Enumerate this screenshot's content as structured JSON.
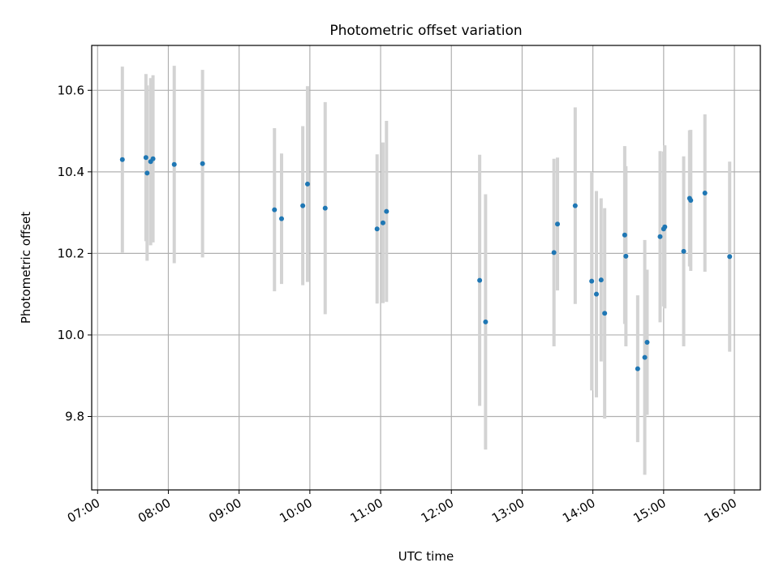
{
  "chart_data": {
    "type": "scatter",
    "title": "Photometric offset variation",
    "xlabel": "UTC time",
    "ylabel": "Photometric offset",
    "x_ticks": [
      "07:00",
      "08:00",
      "09:00",
      "10:00",
      "11:00",
      "12:00",
      "13:00",
      "14:00",
      "15:00",
      "16:00"
    ],
    "y_ticks": [
      "9.8",
      "10.0",
      "10.2",
      "10.4",
      "10.6"
    ],
    "xlim": [
      "06:55",
      "16:22"
    ],
    "ylim": [
      9.62,
      10.71
    ],
    "grid": true,
    "colors": {
      "point": "#1f77b4",
      "errorbar": "#d3d3d3",
      "grid": "#b0b0b0"
    },
    "series": [
      {
        "points": [
          {
            "x": "07:21",
            "y": 10.43,
            "err": 0.228
          },
          {
            "x": "07:41",
            "y": 10.435,
            "err": 0.205
          },
          {
            "x": "07:42",
            "y": 10.397,
            "err": 0.215
          },
          {
            "x": "07:45",
            "y": 10.425,
            "err": 0.205
          },
          {
            "x": "07:47",
            "y": 10.432,
            "err": 0.205
          },
          {
            "x": "08:05",
            "y": 10.418,
            "err": 0.242
          },
          {
            "x": "08:29",
            "y": 10.42,
            "err": 0.23
          },
          {
            "x": "09:30",
            "y": 10.307,
            "err": 0.2
          },
          {
            "x": "09:36",
            "y": 10.285,
            "err": 0.16
          },
          {
            "x": "09:54",
            "y": 10.317,
            "err": 0.195
          },
          {
            "x": "09:58",
            "y": 10.37,
            "err": 0.24
          },
          {
            "x": "10:13",
            "y": 10.311,
            "err": 0.26
          },
          {
            "x": "10:57",
            "y": 10.26,
            "err": 0.183
          },
          {
            "x": "11:02",
            "y": 10.275,
            "err": 0.197
          },
          {
            "x": "11:05",
            "y": 10.303,
            "err": 0.222
          },
          {
            "x": "12:24",
            "y": 10.134,
            "err": 0.308
          },
          {
            "x": "12:29",
            "y": 10.032,
            "err": 0.313
          },
          {
            "x": "13:27",
            "y": 10.202,
            "err": 0.23
          },
          {
            "x": "13:30",
            "y": 10.272,
            "err": 0.163
          },
          {
            "x": "13:45",
            "y": 10.317,
            "err": 0.241
          },
          {
            "x": "13:59",
            "y": 10.132,
            "err": 0.268
          },
          {
            "x": "14:03",
            "y": 10.1,
            "err": 0.253
          },
          {
            "x": "14:07",
            "y": 10.135,
            "err": 0.2
          },
          {
            "x": "14:10",
            "y": 10.053,
            "err": 0.258
          },
          {
            "x": "14:27",
            "y": 10.245,
            "err": 0.218
          },
          {
            "x": "14:28",
            "y": 10.193,
            "err": 0.221
          },
          {
            "x": "14:38",
            "y": 9.917,
            "err": 0.18
          },
          {
            "x": "14:44",
            "y": 9.945,
            "err": 0.288
          },
          {
            "x": "14:46",
            "y": 9.982,
            "err": 0.178
          },
          {
            "x": "14:57",
            "y": 10.241,
            "err": 0.21
          },
          {
            "x": "15:00",
            "y": 10.26,
            "err": 0.19
          },
          {
            "x": "15:01",
            "y": 10.265,
            "err": 0.2
          },
          {
            "x": "15:17",
            "y": 10.205,
            "err": 0.233
          },
          {
            "x": "15:22",
            "y": 10.335,
            "err": 0.167
          },
          {
            "x": "15:23",
            "y": 10.33,
            "err": 0.173
          },
          {
            "x": "15:35",
            "y": 10.348,
            "err": 0.193
          },
          {
            "x": "15:56",
            "y": 10.192,
            "err": 0.233
          }
        ]
      }
    ]
  }
}
